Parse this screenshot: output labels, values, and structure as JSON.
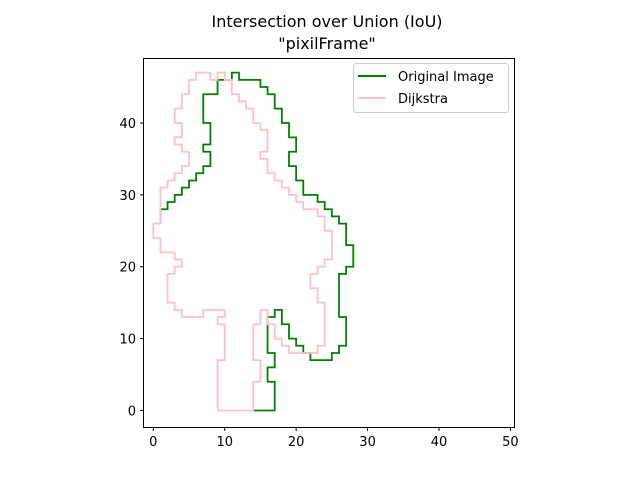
{
  "chart_data": {
    "type": "line",
    "title": "Intersection over Union (IoU)",
    "subtitle": "\"pixilFrame\"",
    "xlabel": "",
    "ylabel": "",
    "xlim": [
      -1.3,
      50.5
    ],
    "ylim": [
      -2.3,
      48.9
    ],
    "xticks": [
      0,
      10,
      20,
      30,
      40,
      50
    ],
    "yticks": [
      0,
      10,
      20,
      30,
      40
    ],
    "grid": false,
    "legend_position": "top-right",
    "series": [
      {
        "name": "Original Image",
        "color": "#008000",
        "points": [
          [
            14,
            0
          ],
          [
            17,
            0
          ],
          [
            17,
            4
          ],
          [
            16,
            4
          ],
          [
            16,
            6
          ],
          [
            17,
            6
          ],
          [
            17,
            8
          ],
          [
            16,
            8
          ],
          [
            16,
            13
          ],
          [
            17,
            13
          ],
          [
            17,
            14
          ],
          [
            18,
            14
          ],
          [
            18,
            12
          ],
          [
            19,
            12
          ],
          [
            19,
            10
          ],
          [
            20,
            10
          ],
          [
            20,
            9
          ],
          [
            21,
            9
          ],
          [
            21,
            8
          ],
          [
            22,
            8
          ],
          [
            22,
            7
          ],
          [
            25,
            7
          ],
          [
            25,
            8
          ],
          [
            26,
            8
          ],
          [
            26,
            9
          ],
          [
            27,
            9
          ],
          [
            27,
            13
          ],
          [
            26,
            13
          ],
          [
            26,
            19
          ],
          [
            27,
            19
          ],
          [
            27,
            20
          ],
          [
            28,
            20
          ],
          [
            28,
            23
          ],
          [
            27,
            23
          ],
          [
            27,
            26
          ],
          [
            26,
            26
          ],
          [
            26,
            27
          ],
          [
            25,
            27
          ],
          [
            25,
            28
          ],
          [
            24,
            28
          ],
          [
            24,
            29
          ],
          [
            23,
            29
          ],
          [
            23,
            30
          ],
          [
            21,
            30
          ],
          [
            21,
            32
          ],
          [
            20,
            32
          ],
          [
            20,
            34
          ],
          [
            19,
            34
          ],
          [
            19,
            36
          ],
          [
            20,
            36
          ],
          [
            20,
            38
          ],
          [
            19,
            38
          ],
          [
            19,
            40
          ],
          [
            18,
            40
          ],
          [
            18,
            42
          ],
          [
            17,
            42
          ],
          [
            17,
            44
          ],
          [
            16,
            44
          ],
          [
            16,
            45
          ],
          [
            15,
            45
          ],
          [
            15,
            46
          ],
          [
            12,
            46
          ],
          [
            12,
            47
          ],
          [
            11,
            47
          ],
          [
            11,
            46
          ],
          [
            9,
            46
          ],
          [
            9,
            44
          ],
          [
            7,
            44
          ],
          [
            7,
            40
          ],
          [
            8,
            40
          ],
          [
            8,
            37
          ],
          [
            7,
            37
          ],
          [
            7,
            36
          ],
          [
            8,
            36
          ],
          [
            8,
            34
          ],
          [
            7,
            34
          ],
          [
            7,
            33
          ],
          [
            6,
            33
          ],
          [
            6,
            32
          ],
          [
            5,
            32
          ],
          [
            5,
            31
          ],
          [
            4,
            31
          ],
          [
            4,
            30
          ],
          [
            3,
            30
          ],
          [
            3,
            29
          ],
          [
            2,
            29
          ],
          [
            2,
            28
          ],
          [
            1,
            28
          ],
          [
            1,
            26
          ]
        ]
      },
      {
        "name": "Dijkstra",
        "color": "#ffc0cb",
        "points": [
          [
            9,
            0
          ],
          [
            14,
            0
          ],
          [
            14,
            4
          ],
          [
            15,
            4
          ],
          [
            15,
            7
          ],
          [
            14,
            7
          ],
          [
            14,
            12
          ],
          [
            15,
            12
          ],
          [
            15,
            14
          ],
          [
            16,
            14
          ],
          [
            16,
            12
          ],
          [
            17,
            12
          ],
          [
            17,
            10
          ],
          [
            18,
            10
          ],
          [
            18,
            9
          ],
          [
            19,
            9
          ],
          [
            19,
            8
          ],
          [
            23,
            8
          ],
          [
            23,
            9
          ],
          [
            24,
            9
          ],
          [
            24,
            15
          ],
          [
            23,
            15
          ],
          [
            23,
            17
          ],
          [
            22,
            17
          ],
          [
            22,
            19
          ],
          [
            23,
            19
          ],
          [
            23,
            20
          ],
          [
            24,
            20
          ],
          [
            24,
            21
          ],
          [
            25,
            21
          ],
          [
            25,
            25
          ],
          [
            24,
            25
          ],
          [
            24,
            27
          ],
          [
            23,
            27
          ],
          [
            23,
            28
          ],
          [
            21,
            28
          ],
          [
            21,
            29
          ],
          [
            20,
            29
          ],
          [
            20,
            30
          ],
          [
            19,
            30
          ],
          [
            19,
            31
          ],
          [
            18,
            31
          ],
          [
            18,
            32
          ],
          [
            17,
            32
          ],
          [
            17,
            33
          ],
          [
            16,
            33
          ],
          [
            16,
            35
          ],
          [
            15,
            35
          ],
          [
            15,
            36
          ],
          [
            16,
            36
          ],
          [
            16,
            39
          ],
          [
            15,
            39
          ],
          [
            15,
            40
          ],
          [
            14,
            40
          ],
          [
            14,
            42
          ],
          [
            13,
            42
          ],
          [
            13,
            43
          ],
          [
            12,
            43
          ],
          [
            12,
            44
          ],
          [
            11,
            44
          ],
          [
            11,
            46
          ],
          [
            10,
            46
          ],
          [
            10,
            47
          ],
          [
            9,
            47
          ],
          [
            9,
            46
          ],
          [
            8,
            46
          ],
          [
            8,
            47
          ],
          [
            6,
            47
          ],
          [
            6,
            46
          ],
          [
            5,
            46
          ],
          [
            5,
            44
          ],
          [
            4,
            44
          ],
          [
            4,
            42
          ],
          [
            3,
            42
          ],
          [
            3,
            40
          ],
          [
            4,
            40
          ],
          [
            4,
            38
          ],
          [
            3,
            38
          ],
          [
            3,
            37
          ],
          [
            4,
            37
          ],
          [
            4,
            36
          ],
          [
            5,
            36
          ],
          [
            5,
            34
          ],
          [
            4,
            34
          ],
          [
            4,
            33
          ],
          [
            3,
            33
          ],
          [
            3,
            32
          ],
          [
            2,
            32
          ],
          [
            2,
            31
          ],
          [
            1,
            31
          ],
          [
            1,
            26
          ],
          [
            0,
            26
          ],
          [
            0,
            24
          ],
          [
            1,
            24
          ],
          [
            1,
            22
          ],
          [
            3,
            22
          ],
          [
            3,
            21
          ],
          [
            4,
            21
          ],
          [
            4,
            20
          ],
          [
            3,
            20
          ],
          [
            3,
            19
          ],
          [
            2,
            19
          ],
          [
            2,
            15
          ],
          [
            3,
            15
          ],
          [
            3,
            14
          ],
          [
            4,
            14
          ],
          [
            4,
            13
          ],
          [
            7,
            13
          ],
          [
            7,
            14
          ],
          [
            10,
            14
          ],
          [
            10,
            13
          ],
          [
            9,
            13
          ],
          [
            9,
            12
          ],
          [
            10,
            12
          ],
          [
            10,
            7
          ],
          [
            9,
            7
          ],
          [
            9,
            0
          ]
        ]
      }
    ]
  }
}
